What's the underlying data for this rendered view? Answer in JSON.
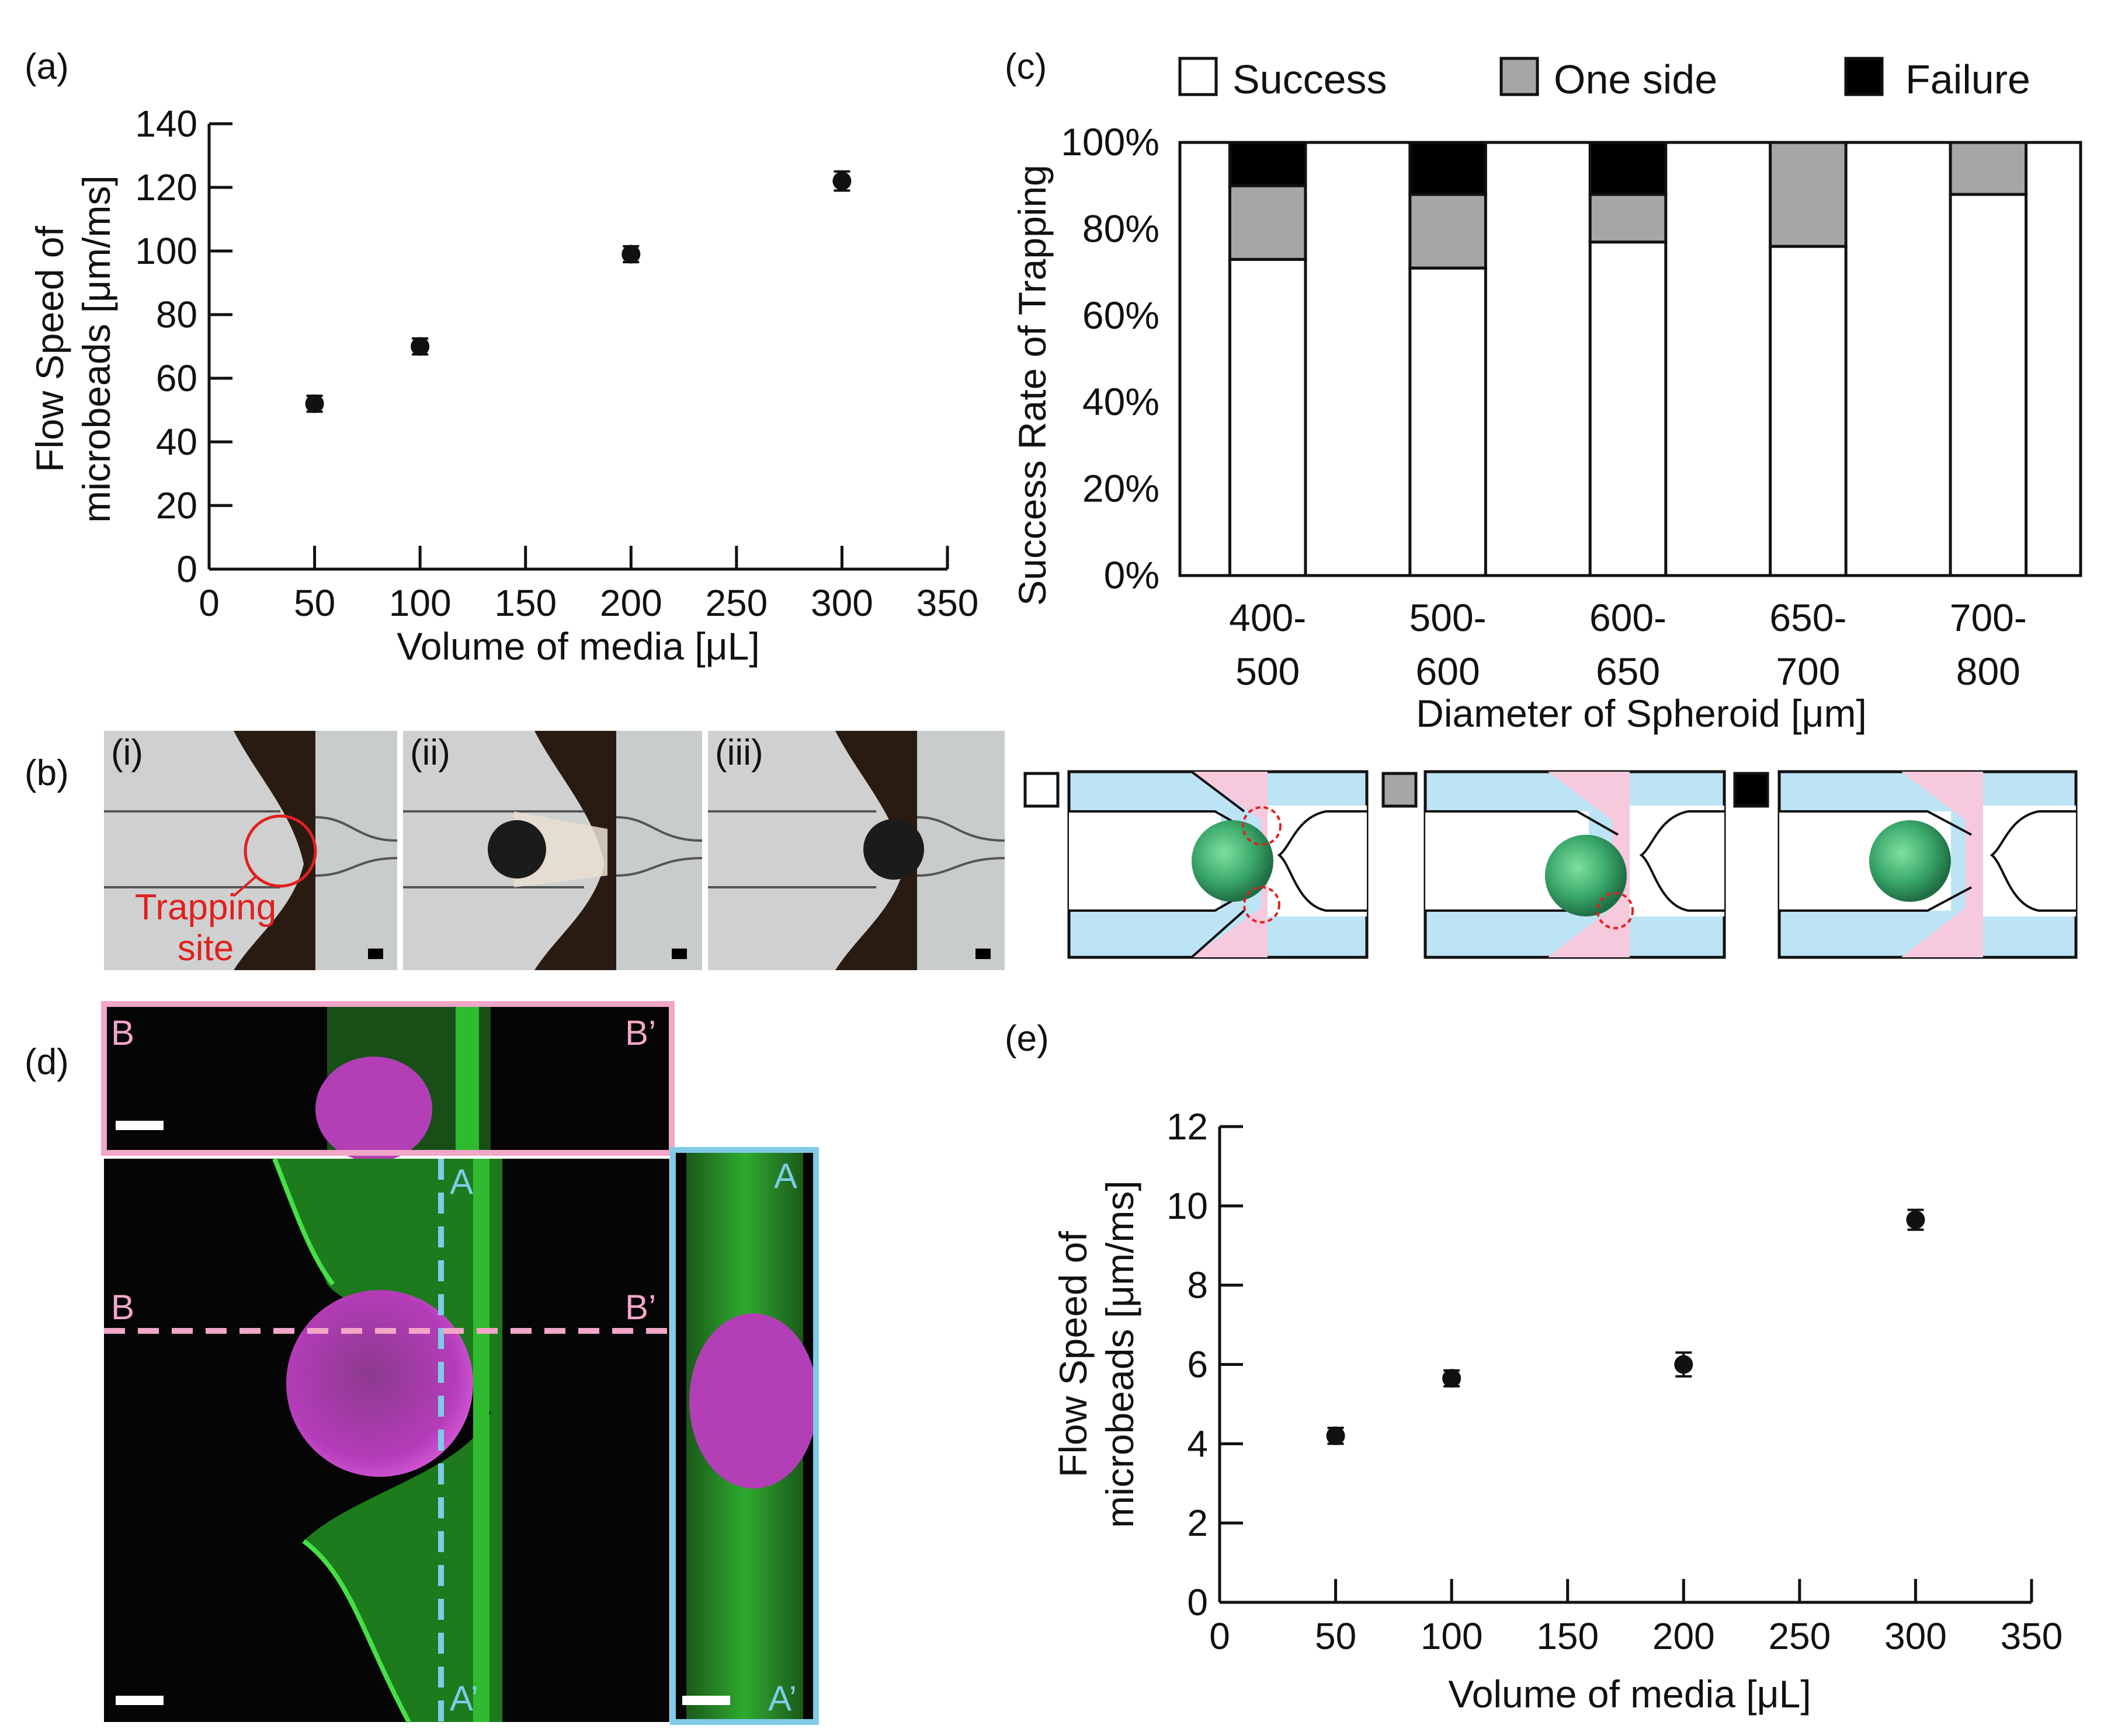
{
  "panels": {
    "a": "(a)",
    "b": "(b)",
    "c": "(c)",
    "d": "(d)",
    "e": "(e)"
  },
  "chart_data": [
    {
      "id": "a",
      "type": "scatter",
      "xlabel": "Volume of media [μL]",
      "ylabel_lines": [
        "Flow Speed of",
        "microbeads [μm/ms]"
      ],
      "xlim": [
        0,
        350
      ],
      "ylim": [
        0,
        140
      ],
      "xticks": [
        "0",
        "50",
        "100",
        "150",
        "200",
        "250",
        "300",
        "350"
      ],
      "yticks": [
        "0",
        "20",
        "40",
        "60",
        "80",
        "100",
        "120",
        "140"
      ],
      "x": [
        50,
        100,
        200,
        300
      ],
      "y": [
        52,
        70,
        99,
        122
      ],
      "yerr": [
        2.5,
        2.5,
        2.5,
        3
      ],
      "grid": false
    },
    {
      "id": "c",
      "type": "bar",
      "stacked": true,
      "xlabel": "Diameter of Spheroid [μm]",
      "ylabel": "Success Rate of Trapping",
      "ylim": [
        0,
        100
      ],
      "yticks": [
        "0%",
        "20%",
        "40%",
        "60%",
        "80%",
        "100%"
      ],
      "categories": [
        [
          "400-",
          "500"
        ],
        [
          "500-",
          "600"
        ],
        [
          "600-",
          "650"
        ],
        [
          "650-",
          "700"
        ],
        [
          "700-",
          "800"
        ]
      ],
      "series": [
        {
          "name": "Success",
          "color": "#ffffff",
          "values": [
            73,
            71,
            77,
            76,
            88
          ]
        },
        {
          "name": "One side",
          "color": "#a6a6a6",
          "values": [
            17,
            17,
            11,
            24,
            12
          ]
        },
        {
          "name": "Failure",
          "color": "#000000",
          "values": [
            10,
            12,
            12,
            0,
            0
          ]
        }
      ],
      "legend": "top"
    },
    {
      "id": "e",
      "type": "scatter",
      "xlabel": "Volume of media [μL]",
      "ylabel_lines": [
        "Flow Speed of",
        "microbeads [μm/ms]"
      ],
      "xlim": [
        0,
        350
      ],
      "ylim": [
        0,
        12
      ],
      "xticks": [
        "0",
        "50",
        "100",
        "150",
        "200",
        "250",
        "300",
        "350"
      ],
      "yticks": [
        "0",
        "2",
        "4",
        "6",
        "8",
        "10",
        "12"
      ],
      "x": [
        50,
        100,
        200,
        300
      ],
      "y": [
        4.2,
        5.65,
        6.0,
        9.65
      ],
      "yerr": [
        0.2,
        0.2,
        0.3,
        0.25
      ],
      "grid": false
    }
  ],
  "micrographs": {
    "labels": [
      "(i)",
      "(ii)",
      "(iii)"
    ],
    "annotation": [
      "Trapping",
      "site"
    ]
  },
  "confocal": {
    "labels": {
      "B": "B",
      "Bp": "B’",
      "A": "A",
      "Ap": "A’"
    },
    "colors": {
      "xz_frame": "#f2a6c8",
      "yz_frame": "#7fcbe8",
      "spheroid": "#c23ec4",
      "wall": "#35c235"
    }
  },
  "schematic": {
    "colors": {
      "channel": "#bde4f4",
      "pink": "#f6c9dc",
      "outline": "#111111",
      "spheroid": "#3aa86a"
    }
  }
}
